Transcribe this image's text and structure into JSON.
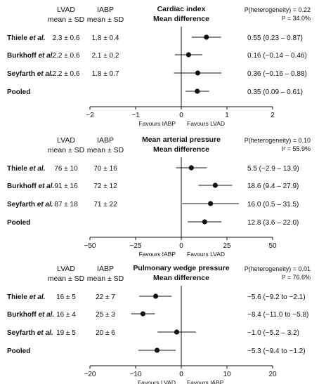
{
  "chart_data": [
    {
      "type": "forest",
      "title_lines": [
        "Cardiac index",
        "Mean difference"
      ],
      "column_headers": [
        {
          "line1": "LVAD",
          "line2": "mean ± SD"
        },
        {
          "line1": "IABP",
          "line2": "mean ± SD"
        }
      ],
      "heterogeneity": {
        "p_label": "P(heterogeneity) = 0.22",
        "i2_label": "I² = 34.0%"
      },
      "rows": [
        {
          "study": "Thiele et al.",
          "lvad": "2.3 ± 0.6",
          "iabp": "1.8 ± 0.4",
          "estimate": 0.55,
          "lo": 0.23,
          "hi": 0.87,
          "ci_text": "0.55 (0.23 – 0.87)"
        },
        {
          "study": "Burkhoff et al.",
          "lvad": "2.2 ± 0.6",
          "iabp": "2.1 ± 0.2",
          "estimate": 0.16,
          "lo": -0.14,
          "hi": 0.46,
          "ci_text": "0.16 (−0.14 – 0.46)"
        },
        {
          "study": "Seyfarth et al.",
          "lvad": "2.2 ± 0.6",
          "iabp": "1.8 ± 0.7",
          "estimate": 0.36,
          "lo": -0.16,
          "hi": 0.88,
          "ci_text": "0.36 (−0.16 – 0.88)"
        },
        {
          "study": "Pooled",
          "lvad": "",
          "iabp": "",
          "estimate": 0.35,
          "lo": 0.09,
          "hi": 0.61,
          "ci_text": "0.35 (0.09 – 0.61)"
        }
      ],
      "xlim": [
        -2,
        2
      ],
      "ticks": [
        -2,
        -1,
        0,
        1,
        2
      ],
      "tick_labels": [
        "−2",
        "−1",
        "0",
        "1",
        "2"
      ],
      "favours_left": "Favours IABP",
      "favours_right": "Favours LVAD"
    },
    {
      "type": "forest",
      "title_lines": [
        "Mean arterial pressure",
        "Mean difference"
      ],
      "column_headers": [
        {
          "line1": "LVAD",
          "line2": "mean ± SD"
        },
        {
          "line1": "IABP",
          "line2": "mean ± SD"
        }
      ],
      "heterogeneity": {
        "p_label": "P(heterogeneity) = 0.10",
        "i2_label": "I² = 55.9%"
      },
      "rows": [
        {
          "study": "Thiele et al.",
          "lvad": "76 ± 10",
          "iabp": "70 ± 16",
          "estimate": 5.5,
          "lo": -2.9,
          "hi": 13.9,
          "ci_text": "5.5 (−2.9 – 13.9)"
        },
        {
          "study": "Burkhoff et al.",
          "lvad": "91 ± 16",
          "iabp": "72 ± 12",
          "estimate": 18.6,
          "lo": 9.4,
          "hi": 27.9,
          "ci_text": "18.6 (9.4 – 27.9)"
        },
        {
          "study": "Seyfarth et al.",
          "lvad": "87 ± 18",
          "iabp": "71 ± 22",
          "estimate": 16.0,
          "lo": 0.5,
          "hi": 31.5,
          "ci_text": "16.0 (0.5 – 31.5)"
        },
        {
          "study": "Pooled",
          "lvad": "",
          "iabp": "",
          "estimate": 12.8,
          "lo": 3.6,
          "hi": 22.0,
          "ci_text": "12.8 (3.6 – 22.0)"
        }
      ],
      "xlim": [
        -50,
        50
      ],
      "ticks": [
        -50,
        -25,
        0,
        25,
        50
      ],
      "tick_labels": [
        "−50",
        "−25",
        "0",
        "25",
        "50"
      ],
      "favours_left": "Favours IABP",
      "favours_right": "Favours LVAD"
    },
    {
      "type": "forest",
      "title_lines": [
        "Pulmonary wedge pressure",
        "Mean difference"
      ],
      "column_headers": [
        {
          "line1": "LVAD",
          "line2": "mean ± SD"
        },
        {
          "line1": "IABP",
          "line2": "mean ± SD"
        }
      ],
      "heterogeneity": {
        "p_label": "P(heterogeneity) = 0.01",
        "i2_label": "I² = 76.6%"
      },
      "rows": [
        {
          "study": "Thiele et al.",
          "lvad": "16 ± 5",
          "iabp": "22 ± 7",
          "estimate": -5.6,
          "lo": -9.2,
          "hi": -2.1,
          "ci_text": "−5.6 (−9.2 to −2.1)"
        },
        {
          "study": "Burkhoff et al.",
          "lvad": "16 ± 4",
          "iabp": "25 ± 3",
          "estimate": -8.4,
          "lo": -11.0,
          "hi": -5.8,
          "ci_text": "−8.4 (−11.0 to −5.8)"
        },
        {
          "study": "Seyfarth et al.",
          "lvad": "19 ± 5",
          "iabp": "20 ± 6",
          "estimate": -1.0,
          "lo": -5.2,
          "hi": 3.2,
          "ci_text": "−1.0 (−5.2 – 3.2)"
        },
        {
          "study": "Pooled",
          "lvad": "",
          "iabp": "",
          "estimate": -5.3,
          "lo": -9.4,
          "hi": -1.2,
          "ci_text": "−5.3 (−9.4 to −1.2)"
        }
      ],
      "xlim": [
        -20,
        20
      ],
      "ticks": [
        -20,
        -10,
        0,
        10,
        20
      ],
      "tick_labels": [
        "−20",
        "−10",
        "0",
        "10",
        "20"
      ],
      "favours_left": "Favours LVAD",
      "favours_right": "Favours IABP"
    }
  ]
}
